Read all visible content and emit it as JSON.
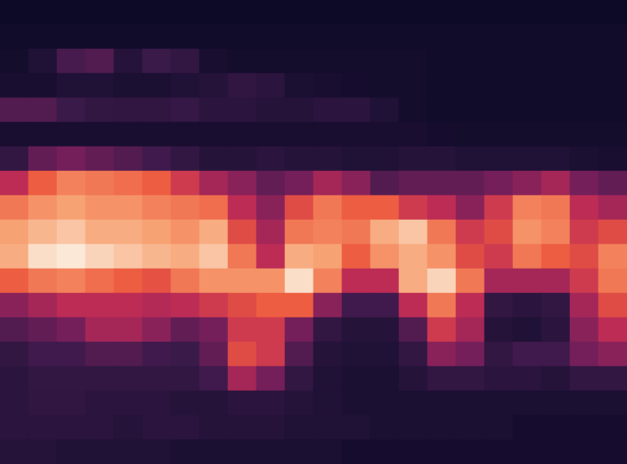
{
  "chart_data": {
    "type": "heatmap",
    "grid": false,
    "tick_labels": false,
    "cells": [
      [
        0,
        0,
        0,
        0,
        0,
        0,
        0,
        0,
        0,
        0,
        0,
        0,
        0,
        0,
        0,
        0,
        0,
        0,
        0,
        0,
        0,
        0
      ],
      [
        2,
        2,
        2,
        2,
        2,
        2,
        2,
        2,
        2,
        2,
        2,
        2,
        2,
        2,
        2,
        2,
        2,
        2,
        2,
        2,
        2,
        2
      ],
      [
        3,
        8,
        22,
        25,
        10,
        18,
        15,
        5,
        3,
        3,
        3,
        3,
        3,
        3,
        3,
        2,
        2,
        2,
        2,
        2,
        2,
        2
      ],
      [
        5,
        5,
        8,
        8,
        6,
        6,
        8,
        10,
        14,
        12,
        6,
        5,
        4,
        3,
        3,
        2,
        2,
        2,
        2,
        2,
        2,
        2
      ],
      [
        25,
        25,
        18,
        15,
        14,
        14,
        16,
        12,
        12,
        10,
        10,
        12,
        12,
        8,
        3,
        2,
        2,
        2,
        2,
        2,
        2,
        2
      ],
      [
        5,
        5,
        5,
        5,
        5,
        5,
        5,
        5,
        5,
        5,
        5,
        5,
        5,
        5,
        5,
        4,
        3,
        3,
        3,
        3,
        3,
        3
      ],
      [
        15,
        30,
        35,
        30,
        25,
        20,
        15,
        10,
        10,
        12,
        10,
        10,
        8,
        8,
        10,
        10,
        8,
        8,
        8,
        8,
        6,
        5
      ],
      [
        50,
        65,
        72,
        70,
        68,
        65,
        55,
        45,
        40,
        30,
        35,
        45,
        40,
        25,
        30,
        30,
        30,
        35,
        40,
        45,
        35,
        30
      ],
      [
        70,
        75,
        78,
        75,
        75,
        72,
        70,
        68,
        50,
        40,
        60,
        70,
        65,
        65,
        55,
        50,
        40,
        55,
        72,
        70,
        50,
        45
      ],
      [
        78,
        82,
        85,
        80,
        80,
        78,
        75,
        80,
        60,
        45,
        70,
        72,
        70,
        80,
        85,
        70,
        55,
        60,
        75,
        72,
        55,
        60
      ],
      [
        80,
        90,
        92,
        88,
        85,
        82,
        80,
        85,
        70,
        50,
        80,
        78,
        65,
        75,
        80,
        75,
        60,
        55,
        70,
        65,
        60,
        72
      ],
      [
        65,
        70,
        72,
        68,
        65,
        62,
        70,
        75,
        75,
        75,
        90,
        72,
        50,
        50,
        80,
        88,
        70,
        45,
        45,
        45,
        55,
        70
      ],
      [
        40,
        45,
        50,
        50,
        50,
        48,
        50,
        55,
        60,
        65,
        65,
        40,
        20,
        20,
        50,
        70,
        50,
        15,
        12,
        15,
        45,
        60
      ],
      [
        25,
        30,
        35,
        45,
        45,
        40,
        30,
        35,
        55,
        55,
        35,
        15,
        10,
        10,
        25,
        55,
        45,
        10,
        8,
        12,
        40,
        50
      ],
      [
        15,
        20,
        20,
        25,
        25,
        20,
        18,
        30,
        60,
        55,
        25,
        10,
        8,
        8,
        15,
        40,
        35,
        15,
        20,
        20,
        35,
        40
      ],
      [
        12,
        15,
        15,
        15,
        15,
        15,
        15,
        20,
        45,
        35,
        15,
        8,
        6,
        6,
        10,
        15,
        15,
        12,
        12,
        10,
        15,
        15
      ],
      [
        12,
        14,
        14,
        12,
        12,
        12,
        10,
        10,
        12,
        12,
        10,
        8,
        6,
        6,
        6,
        6,
        6,
        6,
        6,
        6,
        6,
        6
      ],
      [
        12,
        12,
        12,
        12,
        10,
        12,
        12,
        10,
        10,
        10,
        8,
        8,
        8,
        6,
        6,
        6,
        6,
        6,
        4,
        4,
        4,
        4
      ],
      [
        10,
        10,
        8,
        8,
        8,
        8,
        6,
        6,
        6,
        6,
        6,
        6,
        4,
        4,
        4,
        4,
        4,
        4,
        4,
        4,
        4,
        4
      ]
    ]
  }
}
